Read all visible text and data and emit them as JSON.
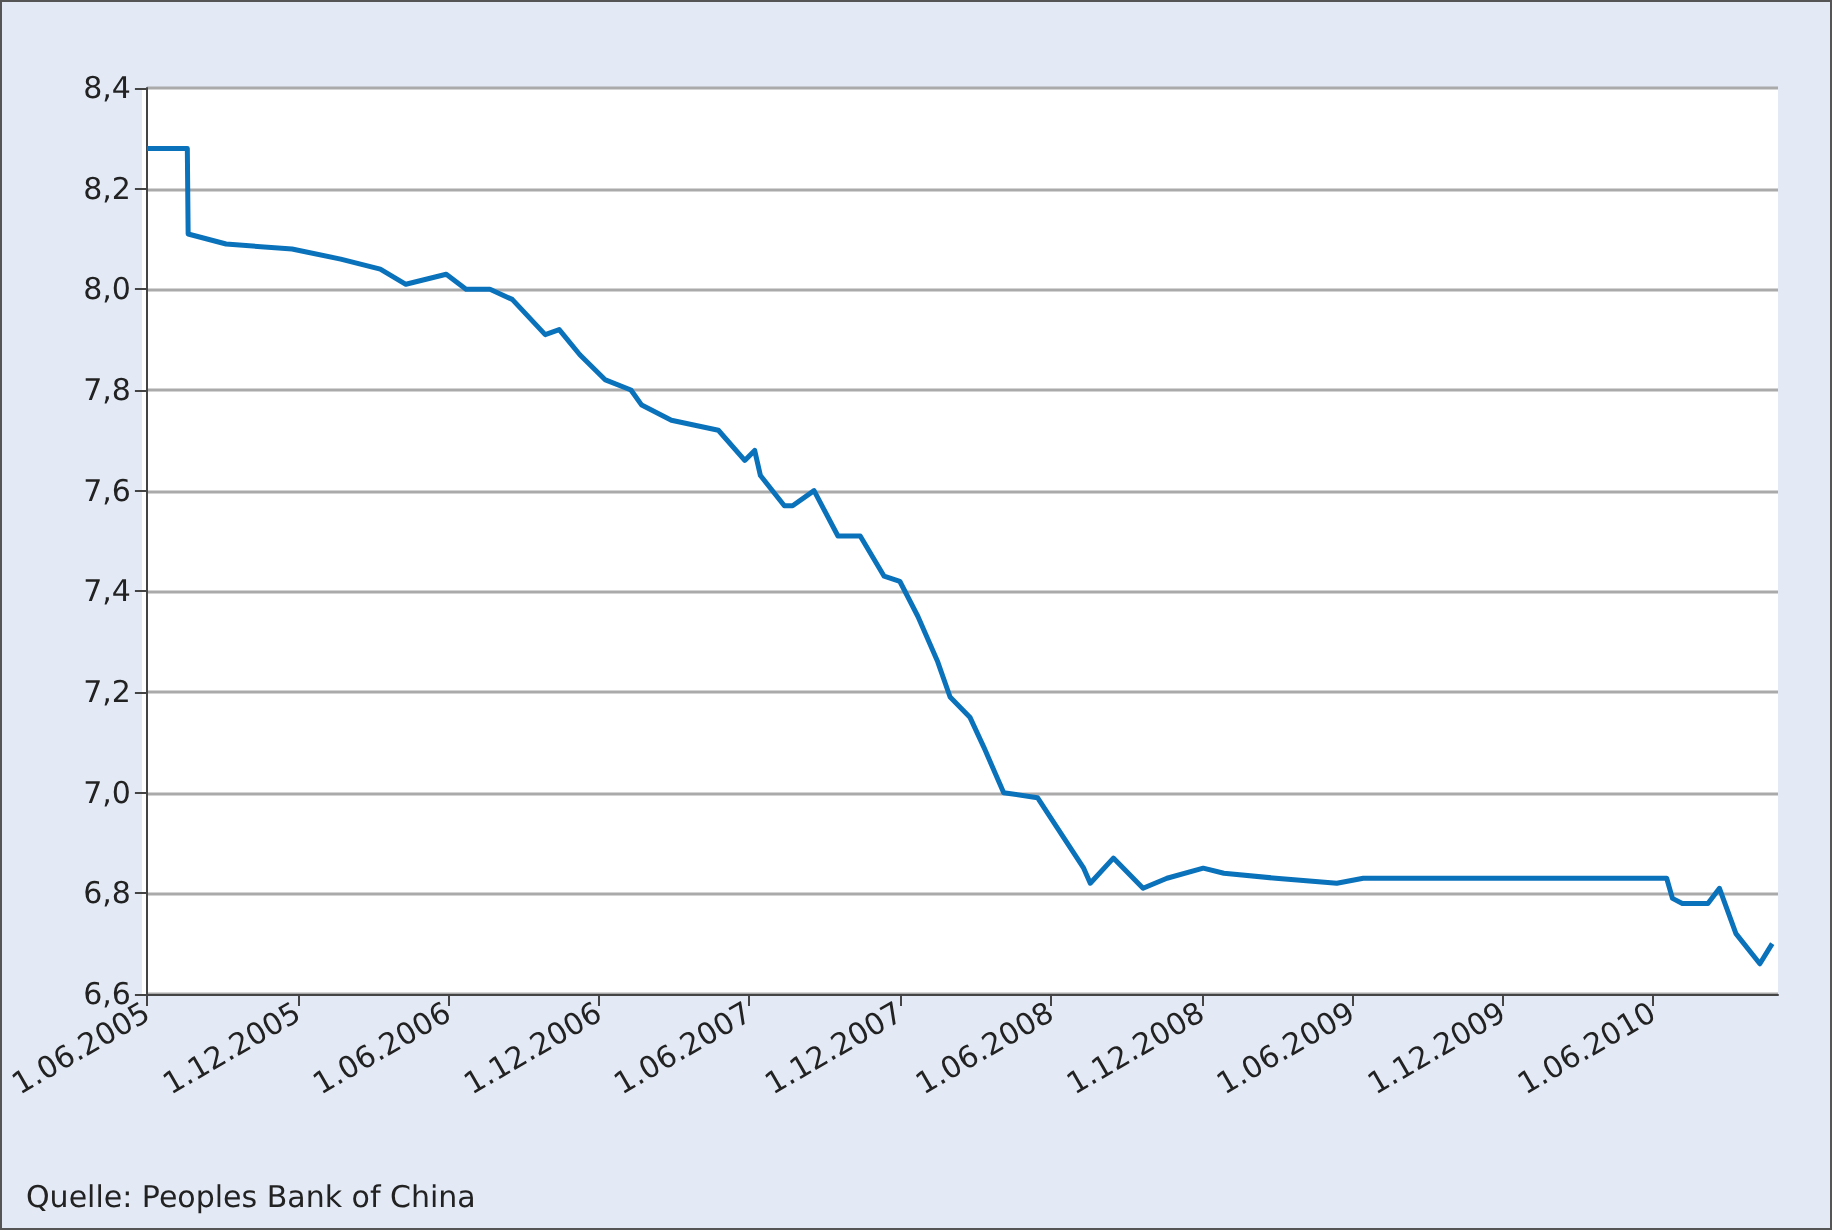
{
  "chart_data": {
    "type": "line",
    "color": "#0a72bb",
    "grid": "y",
    "annotations": [
      "Quelle: Peoples Bank of China"
    ],
    "x": [
      "2005-06-01",
      "2005-07-20",
      "2005-07-21",
      "2005-09-05",
      "2005-11-24",
      "2006-01-22",
      "2006-03-11",
      "2006-04-11",
      "2006-05-30",
      "2006-06-23",
      "2006-07-22",
      "2006-08-18",
      "2006-09-27",
      "2006-10-14",
      "2006-11-08",
      "2006-12-09",
      "2007-01-09",
      "2007-01-22",
      "2007-02-27",
      "2007-04-25",
      "2007-05-27",
      "2007-06-08",
      "2007-06-15",
      "2007-07-14",
      "2007-07-24",
      "2007-08-19",
      "2007-09-17",
      "2007-10-14",
      "2007-11-12",
      "2007-12-01",
      "2007-12-23",
      "2008-01-16",
      "2008-01-31",
      "2008-02-24",
      "2008-03-12",
      "2008-04-05",
      "2008-05-16",
      "2008-06-09",
      "2008-07-11",
      "2008-07-19",
      "2008-08-16",
      "2008-09-21",
      "2008-10-20",
      "2008-12-03",
      "2008-12-28",
      "2009-03-01",
      "2009-05-14",
      "2009-06-15",
      "2009-12-26",
      "2010-06-18",
      "2010-06-25",
      "2010-07-07",
      "2010-08-07",
      "2010-08-21",
      "2010-09-10",
      "2010-10-09",
      "2010-10-24"
    ],
    "values": [
      8.28,
      8.28,
      8.11,
      8.09,
      8.08,
      8.06,
      8.04,
      8.01,
      8.03,
      8.0,
      8.0,
      7.98,
      7.91,
      7.92,
      7.87,
      7.82,
      7.8,
      7.77,
      7.74,
      7.72,
      7.66,
      7.68,
      7.63,
      7.57,
      7.57,
      7.6,
      7.51,
      7.51,
      7.43,
      7.42,
      7.35,
      7.26,
      7.19,
      7.15,
      7.09,
      7.0,
      6.99,
      6.93,
      6.85,
      6.82,
      6.87,
      6.81,
      6.83,
      6.85,
      6.84,
      6.83,
      6.82,
      6.83,
      6.83,
      6.83,
      6.79,
      6.78,
      6.78,
      6.81,
      6.72,
      6.66,
      6.7
    ],
    "xlim": [
      "2005-06-01",
      "2010-10-31"
    ],
    "xticks": [
      {
        "value": "2005-06-01",
        "label": "1.06.2005"
      },
      {
        "value": "2005-12-01",
        "label": "1.12.2005"
      },
      {
        "value": "2006-06-01",
        "label": "1.06.2006"
      },
      {
        "value": "2006-12-01",
        "label": "1.12.2006"
      },
      {
        "value": "2007-06-01",
        "label": "1.06.2007"
      },
      {
        "value": "2007-12-01",
        "label": "1.12.2007"
      },
      {
        "value": "2008-06-01",
        "label": "1.06.2008"
      },
      {
        "value": "2008-12-01",
        "label": "1.12.2008"
      },
      {
        "value": "2009-06-01",
        "label": "1.06.2009"
      },
      {
        "value": "2009-12-01",
        "label": "1.12.2009"
      },
      {
        "value": "2010-06-01",
        "label": "1.06.2010"
      }
    ],
    "ylim": [
      6.6,
      8.4
    ],
    "yticks": [
      {
        "value": 6.6,
        "label": "6,6"
      },
      {
        "value": 6.8,
        "label": "6,8"
      },
      {
        "value": 7.0,
        "label": "7,0"
      },
      {
        "value": 7.2,
        "label": "7,2"
      },
      {
        "value": 7.4,
        "label": "7,4"
      },
      {
        "value": 7.6,
        "label": "7,6"
      },
      {
        "value": 7.8,
        "label": "7,8"
      },
      {
        "value": 8.0,
        "label": "8,0"
      },
      {
        "value": 8.2,
        "label": "8,2"
      },
      {
        "value": 8.4,
        "label": "8,4"
      }
    ]
  }
}
